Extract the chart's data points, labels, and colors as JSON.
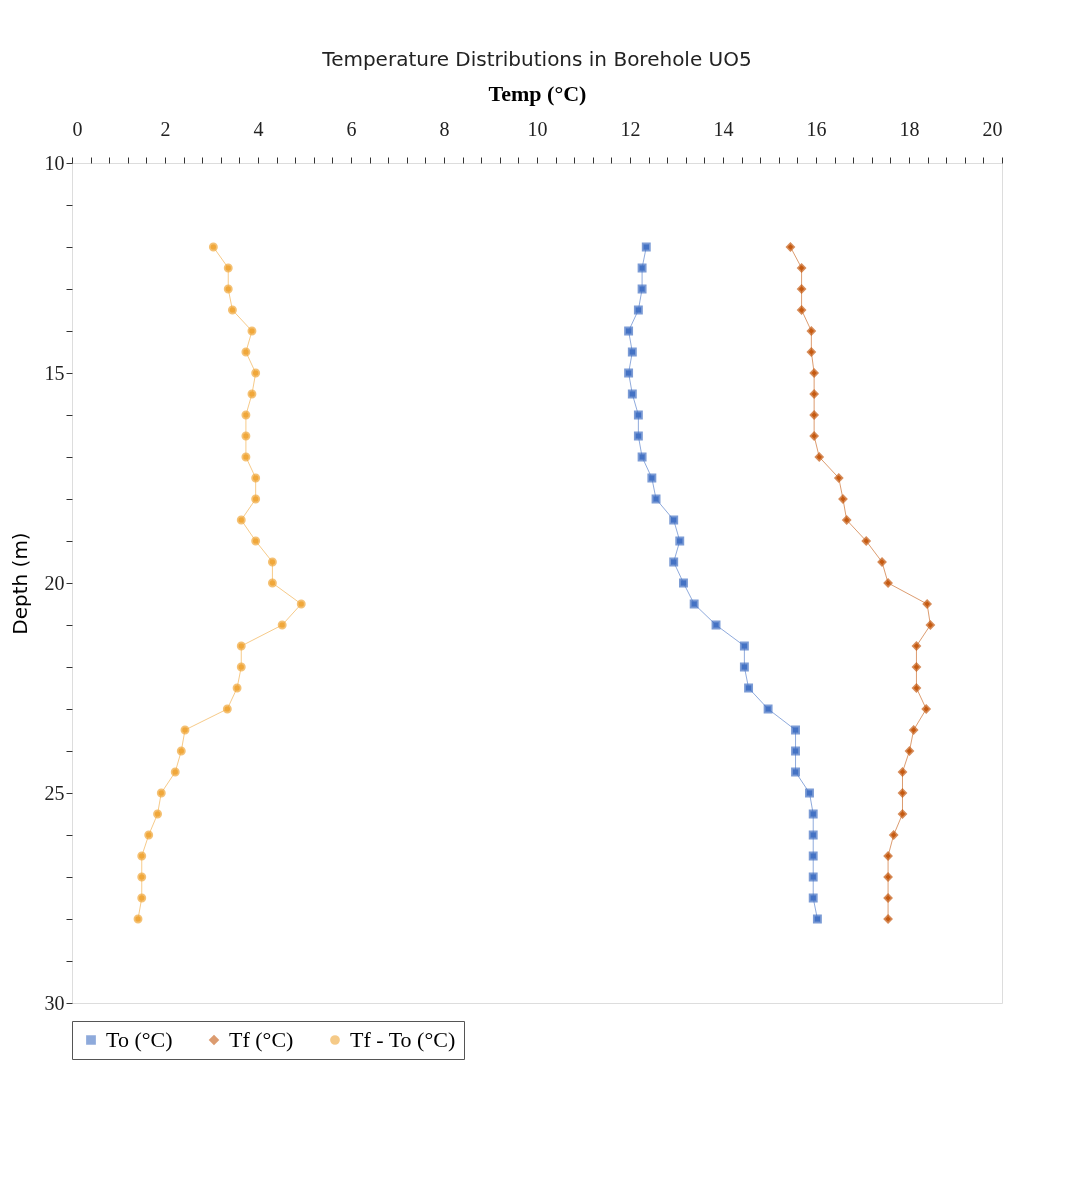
{
  "chart_data": {
    "type": "line",
    "orientation": "horizontal",
    "title": "Temperature Distributions  in Borehole UO5",
    "xlabel": "Temp (°C)",
    "ylabel": "Depth (m)",
    "x": [
      12,
      12.5,
      13,
      13.5,
      14,
      14.5,
      15,
      15.5,
      16,
      16.5,
      17,
      17.5,
      18,
      18.5,
      19,
      19.5,
      20,
      20.5,
      21,
      21.5,
      22,
      22.5,
      23,
      23.5,
      24,
      24.5,
      25,
      25.5,
      26,
      26.5,
      27,
      27.5,
      28
    ],
    "series": [
      {
        "name": "To (°C)",
        "color": "#4472c4",
        "marker": "square",
        "values": [
          12.35,
          12.26,
          12.26,
          12.18,
          11.97,
          12.05,
          11.97,
          12.05,
          12.18,
          12.18,
          12.26,
          12.47,
          12.56,
          12.94,
          13.07,
          12.94,
          13.15,
          13.38,
          13.85,
          14.46,
          14.46,
          14.55,
          14.97,
          15.56,
          15.56,
          15.56,
          15.86,
          15.94,
          15.94,
          15.94,
          15.94,
          15.94,
          16.03
        ]
      },
      {
        "name": "Tf (°C)",
        "color": "#c55a11",
        "marker": "diamond",
        "values": [
          15.45,
          15.69,
          15.69,
          15.69,
          15.9,
          15.9,
          15.96,
          15.96,
          15.96,
          15.96,
          16.07,
          16.49,
          16.58,
          16.66,
          17.08,
          17.42,
          17.55,
          18.39,
          18.46,
          18.16,
          18.16,
          18.16,
          18.37,
          18.1,
          18.01,
          17.86,
          17.86,
          17.86,
          17.67,
          17.55,
          17.55,
          17.55,
          17.55
        ]
      },
      {
        "name": "Tf - To (°C)",
        "color": "#f0a73a",
        "marker": "circle",
        "values": [
          3.04,
          3.36,
          3.36,
          3.45,
          3.87,
          3.74,
          3.95,
          3.87,
          3.74,
          3.74,
          3.74,
          3.95,
          3.95,
          3.64,
          3.95,
          4.31,
          4.31,
          4.93,
          4.52,
          3.64,
          3.64,
          3.55,
          3.34,
          2.43,
          2.35,
          2.22,
          1.92,
          1.84,
          1.65,
          1.5,
          1.5,
          1.5,
          1.42
        ]
      }
    ],
    "xlim": [
      0,
      20
    ],
    "xticks": [
      0,
      {
        "value": 0.4,
        "label": null
      },
      {
        "value": 0.8,
        "label": null
      },
      {
        "value": 1.2,
        "label": null
      },
      {
        "value": 1.6,
        "label": null
      },
      2,
      {
        "value": 2.4,
        "label": null
      },
      {
        "value": 2.8,
        "label": null
      },
      {
        "value": 3.2,
        "label": null
      },
      {
        "value": 3.6,
        "label": null
      },
      4,
      {
        "value": 4.4,
        "label": null
      },
      {
        "value": 4.8,
        "label": null
      },
      {
        "value": 5.2,
        "label": null
      },
      {
        "value": 5.6,
        "label": null
      },
      6,
      {
        "value": 6.4,
        "label": null
      },
      {
        "value": 6.8,
        "label": null
      },
      {
        "value": 7.2,
        "label": null
      },
      {
        "value": 7.6,
        "label": null
      },
      8,
      {
        "value": 8.4,
        "label": null
      },
      {
        "value": 8.8,
        "label": null
      },
      {
        "value": 9.2,
        "label": null
      },
      {
        "value": 9.6,
        "label": null
      },
      10,
      {
        "value": 10.4,
        "label": null
      },
      {
        "value": 10.8,
        "label": null
      },
      {
        "value": 11.2,
        "label": null
      },
      {
        "value": 11.6,
        "label": null
      },
      12,
      {
        "value": 12.4,
        "label": null
      },
      {
        "value": 12.8,
        "label": null
      },
      {
        "value": 13.2,
        "label": null
      },
      {
        "value": 13.6,
        "label": null
      },
      14,
      {
        "value": 14.4,
        "label": null
      },
      {
        "value": 14.8,
        "label": null
      },
      {
        "value": 15.2,
        "label": null
      },
      {
        "value": 15.6,
        "label": null
      },
      16,
      {
        "value": 16.4,
        "label": null
      },
      {
        "value": 16.8,
        "label": null
      },
      {
        "value": 17.2,
        "label": null
      },
      {
        "value": 17.6,
        "label": null
      },
      18,
      {
        "value": 18.4,
        "label": null
      },
      {
        "value": 18.8,
        "label": null
      },
      {
        "value": 19.2,
        "label": null
      },
      {
        "value": 19.6,
        "label": null
      },
      20
    ],
    "ylim": [
      30,
      10
    ],
    "yticks": [
      10,
      {
        "value": 11,
        "label": null
      },
      {
        "value": 12,
        "label": null
      },
      {
        "value": 13,
        "label": null
      },
      {
        "value": 14,
        "label": null
      },
      15,
      {
        "value": 16,
        "label": null
      },
      {
        "value": 17,
        "label": null
      },
      {
        "value": 18,
        "label": null
      },
      {
        "value": 19,
        "label": null
      },
      20,
      {
        "value": 21,
        "label": null
      },
      {
        "value": 22,
        "label": null
      },
      {
        "value": 23,
        "label": null
      },
      {
        "value": 24,
        "label": null
      },
      25,
      {
        "value": 26,
        "label": null
      },
      {
        "value": 27,
        "label": null
      },
      {
        "value": 28,
        "label": null
      },
      {
        "value": 29,
        "label": null
      },
      30
    ],
    "grid": false,
    "legend": "bottom",
    "line_style": "solid"
  }
}
